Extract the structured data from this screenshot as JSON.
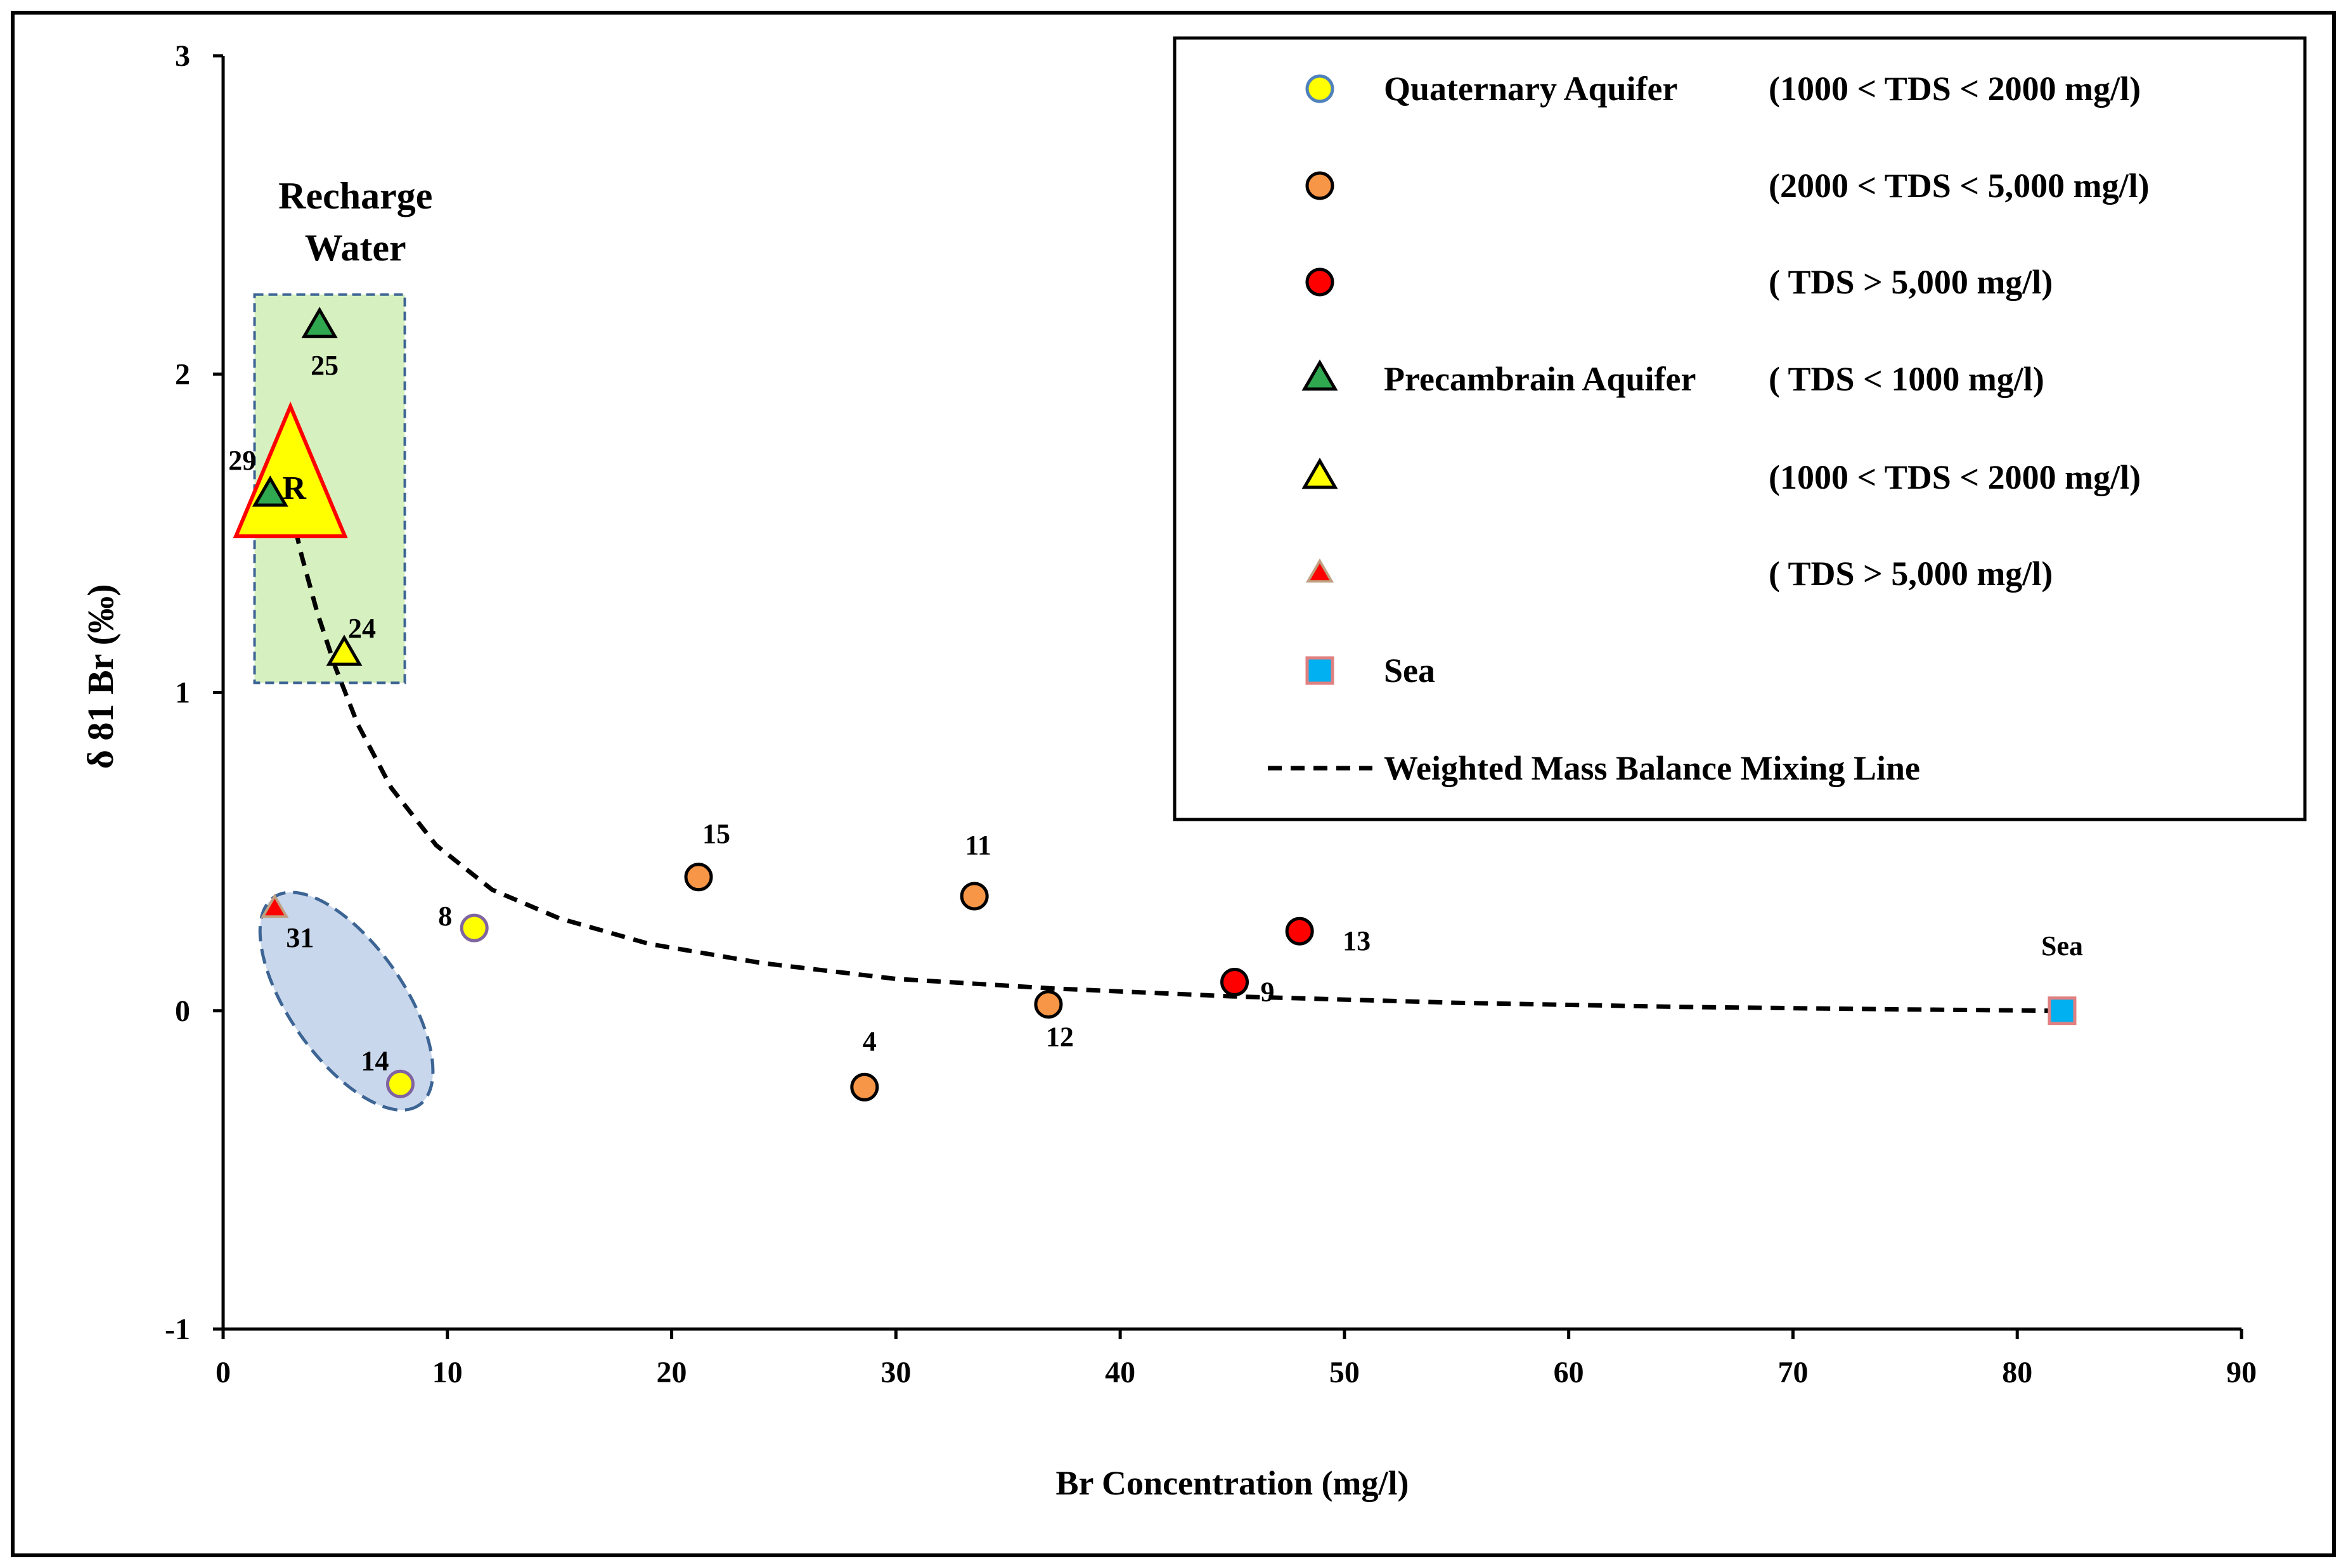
{
  "chart_data": {
    "type": "scatter",
    "title": "",
    "xlabel": "Br Concentration  (mg/l)",
    "ylabel": "δ 81 Br  (‰)",
    "xlim": [
      0,
      90
    ],
    "ylim": [
      -1,
      3
    ],
    "xticks": [
      0,
      10,
      20,
      30,
      40,
      50,
      60,
      70,
      80,
      90
    ],
    "yticks": [
      -1,
      0,
      1,
      2,
      3
    ],
    "grid": false,
    "legend_position": "top-right",
    "colors": {
      "yellow": "#ffff00",
      "orange": "#f79646",
      "red": "#ff0000",
      "green": "#2fa84f",
      "sea_blue": "#00b0f0",
      "recharge_box_fill": "#d7f0c0",
      "recharge_box_stroke": "#3c6494",
      "ellipse_fill": "#c9d7ec"
    },
    "legend": [
      {
        "group": "Quaternary Aquifer",
        "range": "(1000 < TDS < 2000 mg/l)",
        "marker": "circle",
        "fill": "#ffff00",
        "stroke": "#4f81bd"
      },
      {
        "group": "",
        "range": "(2000 < TDS < 5,000 mg/l)",
        "marker": "circle",
        "fill": "#f79646",
        "stroke": "#000000"
      },
      {
        "group": "",
        "range": "(           TDS > 5,000 mg/l)",
        "marker": "circle",
        "fill": "#ff0000",
        "stroke": "#000000"
      },
      {
        "group": "Precambrain Aquifer",
        "range": "(           TDS  < 1000 mg/l)",
        "marker": "triangle",
        "fill": "#2fa84f",
        "stroke": "#000000"
      },
      {
        "group": "",
        "range": "(1000 < TDS < 2000 mg/l)",
        "marker": "triangle",
        "fill": "#ffff00",
        "stroke": "#000000"
      },
      {
        "group": "",
        "range": "(      TDS > 5,000 mg/l)",
        "marker": "triangle-small",
        "fill": "#ff0000",
        "stroke": "#c0a080"
      },
      {
        "group": "Sea",
        "range": "",
        "marker": "square",
        "fill": "#00b0f0",
        "stroke": "#e08080"
      },
      {
        "group": "Weighted Mass Balance Mixing Line",
        "range": "",
        "marker": "dashed-line",
        "fill": "",
        "stroke": "#000000"
      }
    ],
    "series": [
      {
        "name": "Quaternary 1000-2000",
        "marker": "circle",
        "fill": "#ffff00",
        "stroke": "#8064a2",
        "points": [
          {
            "x": 11.2,
            "y": 0.26,
            "label": "8"
          },
          {
            "x": 7.9,
            "y": -0.23,
            "label": "14"
          }
        ]
      },
      {
        "name": "Quaternary 2000-5000",
        "marker": "circle",
        "fill": "#f79646",
        "stroke": "#000000",
        "points": [
          {
            "x": 21.2,
            "y": 0.42,
            "label": "15"
          },
          {
            "x": 33.5,
            "y": 0.36,
            "label": "11"
          },
          {
            "x": 36.8,
            "y": 0.02,
            "label": "12"
          },
          {
            "x": 28.6,
            "y": -0.24,
            "label": "4"
          }
        ]
      },
      {
        "name": "Quaternary >5000",
        "marker": "circle",
        "fill": "#ff0000",
        "stroke": "#000000",
        "points": [
          {
            "x": 45.1,
            "y": 0.09,
            "label": "9"
          },
          {
            "x": 48.0,
            "y": 0.25,
            "label": "13"
          }
        ]
      },
      {
        "name": "Precambrian <1000",
        "marker": "triangle",
        "fill": "#2fa84f",
        "stroke": "#000000",
        "points": [
          {
            "x": 4.3,
            "y": 2.15,
            "label": "25"
          },
          {
            "x": 2.1,
            "y": 1.62,
            "label": "29"
          }
        ]
      },
      {
        "name": "Precambrian 1000-2000",
        "marker": "triangle",
        "fill": "#ffff00",
        "stroke": "#000000",
        "points": [
          {
            "x": 5.4,
            "y": 1.12,
            "label": "24"
          }
        ]
      },
      {
        "name": "Precambrian >5000",
        "marker": "triangle-small",
        "fill": "#ff0000",
        "stroke": "#c0a080",
        "points": [
          {
            "x": 2.3,
            "y": 0.32,
            "label": "31"
          }
        ]
      },
      {
        "name": "Recharge",
        "marker": "triangle-big",
        "fill": "#ffff00",
        "stroke": "#ff0000",
        "points": [
          {
            "x": 3.0,
            "y": 1.6,
            "label": "R"
          }
        ]
      },
      {
        "name": "Sea",
        "marker": "square",
        "fill": "#00b0f0",
        "stroke": "#e08080",
        "points": [
          {
            "x": 82.0,
            "y": 0.0,
            "label": "Sea"
          }
        ]
      }
    ],
    "mixing_line": {
      "name": "Weighted Mass Balance Mixing Line",
      "x": [
        3.0,
        3.5,
        4.2,
        5.0,
        6.0,
        7.5,
        9.5,
        12,
        15,
        19,
        24,
        30,
        37,
        45,
        55,
        65,
        75,
        82
      ],
      "y": [
        1.58,
        1.43,
        1.25,
        1.08,
        0.9,
        0.7,
        0.52,
        0.38,
        0.29,
        0.21,
        0.15,
        0.1,
        0.07,
        0.045,
        0.025,
        0.012,
        0.004,
        0.0
      ]
    },
    "annotations": [
      {
        "text_lines": [
          "Recharge",
          "Water"
        ],
        "x": 5.9,
        "y": 2.52
      }
    ],
    "regions": [
      {
        "shape": "rect",
        "name": "recharge-water-box",
        "x0": 1.4,
        "x1": 8.1,
        "y0": 1.03,
        "y1": 2.25
      },
      {
        "shape": "ellipse",
        "name": "ellipse-group",
        "cx": 5.5,
        "cy": 0.03,
        "rx": 2.35,
        "ry": 0.43,
        "angle_deg": 55
      }
    ]
  }
}
